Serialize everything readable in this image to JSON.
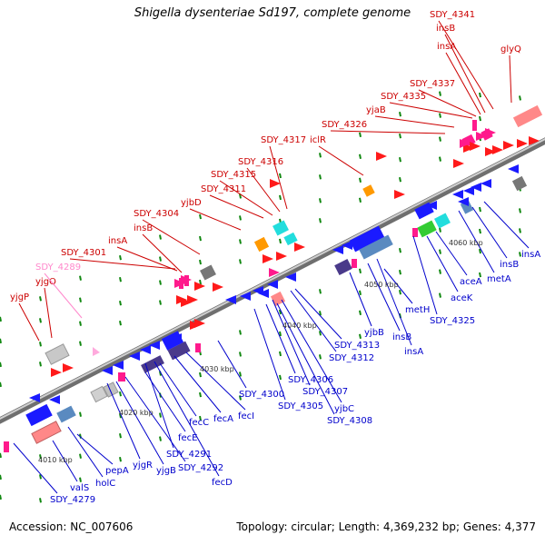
{
  "title": "Shigella dysenteriae Sd197, complete genome",
  "footer": {
    "accession": "Accession: NC_007606",
    "summary": "Topology: circular; Length: 4,369,232 bp; Genes: 4,377"
  },
  "colors": {
    "label_top": "#cc0000",
    "label_top_pseudo": "#ff88cc",
    "label_bottom": "#0000cc",
    "backbone": "#9a9a9a",
    "gene_red": "#ff1a1a",
    "gene_blue": "#1a1aff",
    "gene_pink": "#ff8888",
    "gene_magenta": "#ff1a8c",
    "gene_navy": "#4a3a8a",
    "gene_steel": "#5a8ac0",
    "gene_grey": "#777777",
    "gene_orange": "#ff9900",
    "gene_cyan": "#22dddd",
    "gene_green": "#33cc33",
    "tick_green": "#118811"
  },
  "kbp_labels": [
    "4010 kbp",
    "4020 kbp",
    "4030 kbp",
    "4040 kbp",
    "4050 kbp",
    "4060 kbp"
  ],
  "top_labels": [
    "yjgP",
    "yjgQ",
    "SDY_4289",
    "SDY_4301",
    "insA",
    "insB",
    "SDY_4304",
    "yjbD",
    "SDY_4311",
    "SDY_4315",
    "SDY_4316",
    "SDY_4317",
    "iclR",
    "SDY_4326",
    "yjaB",
    "SDY_4335",
    "SDY_4337",
    "insA",
    "insB",
    "SDY_4341",
    "glyQ"
  ],
  "bottom_labels": [
    "SDY_4279",
    "valS",
    "holC",
    "pepA",
    "yjgR",
    "yjgB",
    "SDY_4292",
    "SDY_4291",
    "fecD",
    "fecE",
    "fecC",
    "fecA",
    "fecI",
    "SDY_4300",
    "SDY_4305",
    "SDY_4306",
    "SDY_4307",
    "yjbC",
    "SDY_4308",
    "SDY_4312",
    "SDY_4313",
    "yjbB",
    "insB",
    "insA",
    "metH",
    "SDY_4325",
    "aceK",
    "aceA",
    "metA",
    "insB",
    "insA"
  ]
}
